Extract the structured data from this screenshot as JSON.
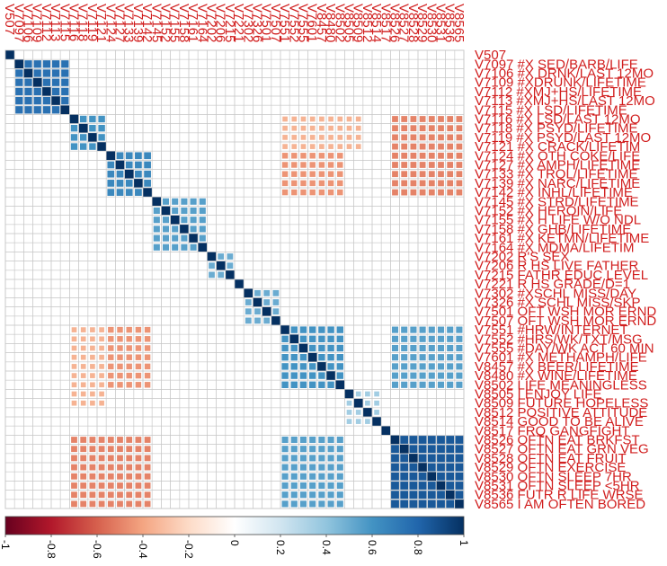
{
  "chart_data": {
    "type": "heatmap",
    "subtype": "correlation-matrix",
    "variables": [
      "V507",
      "V7097 #X SED/BARB/LIFE",
      "V7106 #X DRNK/LAST 12MO",
      "V7109 #XDRUNK/LIFETIME",
      "V7112 #XMJ+HS/LIFETIME",
      "V7113 #XMJ+HS/LAST 12MO",
      "V7115 #X LSD/LIFETIME",
      "V7116 #X LSD/LAST 12MO",
      "V7118 #X PSYD/LIFETIME",
      "V7119 #X PSYD/LAST 12MO",
      "V7121 #X CRACK/LIFETIM",
      "V7124 #X OTH COKE/LIFE",
      "V7127 #X AMPH/LIFETIME",
      "V7133 #X TRQL/LIFETIME",
      "V7139 #X NARC/LIFETIME",
      "V7142 #X INHL/LIFETIME",
      "V7145 #X STRD/LIFETIME",
      "V7152 #X HEROIN/LIFE",
      "V7155 #X H LIFE W/O NDL",
      "V7158 #X GHB/LIFETIME",
      "V7161 #X KETMN/LIFETIME",
      "V7164 #X MDMA/LIFETIM",
      "V7202 R'S SEX",
      "V7206 R HS LIVE FATHER",
      "V7215 FATHR EDUC LEVEL",
      "V7221 R HS GRADE/D=1",
      "V7302 #XSCHL MISS/DAY",
      "V7326 #X SCHL MISS/SKP",
      "V7501 OFT WSH MOR ERND",
      "V7507 OFT WSH MOR ERND",
      "V7551 #HRW/INTERNET",
      "V7552 #HRS/WK/TXT/MSG",
      "V7555 #DAY/WK ACT 60 MIN",
      "V7601 #X METHAMPH/LIFE",
      "V8457 #X BEER/LIFETIME",
      "V8480 #X WINE/LIFETIME",
      "V8502 LIFE MEANINGLESS",
      "V8505 I ENJOY LIFE",
      "V8509 FUTURE HOPELESS",
      "V8512 POSITIVE ATTITUDE",
      "V8514 GOOD TO BE ALIVE",
      "V8517 FRQ GANGFIGHT",
      "V8526 OFTN EAT BRKFST",
      "V8527 OFTN EAT GRN VEG",
      "V8528 OFTN EAT FRUIT",
      "V8529 OFTN EXERCISE",
      "V8530 OFTN SLEEP 7HR",
      "V8531 OFTN SLEEP <5HR",
      "V8536 FUTR R LIFE WRSE",
      "V8565 I AM OFTEN BORED"
    ],
    "top_labels": [
      "V8565",
      "V8536",
      "V8531",
      "V8530",
      "V8529",
      "V8528",
      "V8527",
      "V8526",
      "V8517",
      "V8514",
      "V8512",
      "V8509",
      "V8505",
      "V8502",
      "V8480",
      "V8457",
      "V7601",
      "V7555",
      "V7552",
      "V7551",
      "V7507",
      "V7501",
      "V7326",
      "V7302",
      "V7221",
      "V7215",
      "V7206",
      "V7202",
      "V7164",
      "V7161",
      "V7158",
      "V7155",
      "V7152",
      "V7145",
      "V7142",
      "V7139",
      "V7133",
      "V7127",
      "V7124",
      "V7121",
      "V7119",
      "V7118",
      "V7116",
      "V7115",
      "V7113",
      "V7112",
      "V7109",
      "V7106",
      "V7097",
      "V507"
    ],
    "blocks": [
      {
        "rows": [
          1,
          2,
          3,
          4,
          5,
          6
        ],
        "cols": [
          1,
          2,
          3,
          4,
          5,
          6
        ],
        "value": 0.75
      },
      {
        "rows": [
          7,
          8,
          9,
          10
        ],
        "cols": [
          7,
          8,
          9,
          10
        ],
        "value": 0.6
      },
      {
        "rows": [
          11,
          12,
          13,
          14,
          15
        ],
        "cols": [
          11,
          12,
          13,
          14,
          15
        ],
        "value": 0.65
      },
      {
        "rows": [
          16,
          17,
          18,
          19,
          20,
          21
        ],
        "cols": [
          16,
          17,
          18,
          19,
          20,
          21
        ],
        "value": 0.55
      },
      {
        "rows": [
          22,
          23,
          24
        ],
        "cols": [
          22,
          23,
          24
        ],
        "value": 0.5
      },
      {
        "rows": [
          26,
          27,
          28,
          29
        ],
        "cols": [
          26,
          27,
          28,
          29
        ],
        "value": 0.5
      },
      {
        "rows": [
          30,
          31,
          32,
          33,
          34,
          35,
          36
        ],
        "cols": [
          30,
          31,
          32,
          33,
          34,
          35,
          36
        ],
        "value": 0.6
      },
      {
        "rows": [
          37,
          38,
          39,
          40
        ],
        "cols": [
          37,
          38,
          39,
          40
        ],
        "value": 0.35
      },
      {
        "rows": [
          42,
          43,
          44,
          45,
          46,
          47,
          48,
          49
        ],
        "cols": [
          42,
          43,
          44,
          45,
          46,
          47,
          48,
          49
        ],
        "value": 0.85
      },
      {
        "rows": [
          42,
          43,
          44,
          45,
          46,
          47,
          48,
          49
        ],
        "cols": [
          30,
          31,
          32,
          33,
          34,
          35,
          36
        ],
        "value": 0.55
      },
      {
        "rows": [
          7,
          8,
          9,
          10,
          11,
          12,
          13,
          14,
          15
        ],
        "cols": [
          42,
          43,
          44,
          45,
          46,
          47,
          48,
          49
        ],
        "value": -0.5
      },
      {
        "rows": [
          7,
          8,
          9,
          10,
          11,
          12,
          13,
          14,
          15
        ],
        "cols": [
          30,
          31,
          32,
          33,
          34,
          35,
          36
        ],
        "value": -0.45
      },
      {
        "rows": [
          30,
          31,
          32,
          33,
          34,
          35,
          36,
          37,
          38
        ],
        "cols": [
          7,
          8,
          9,
          10
        ],
        "value": -0.35
      }
    ],
    "color_range": [
      -1,
      1
    ],
    "colorbar_ticks": [
      "-1",
      "-0.8",
      "-0.6",
      "-0.4",
      "-0.2",
      "0",
      "0.2",
      "0.4",
      "0.6",
      "0.8",
      "1"
    ],
    "colorscale": [
      "#67001f",
      "#b2182b",
      "#d6604d",
      "#f4a582",
      "#fddbc7",
      "#ffffff",
      "#d1e5f0",
      "#92c5de",
      "#4393c3",
      "#2166ac",
      "#053061"
    ],
    "diagonal_color": "#053061",
    "label_color": "#d11f1f",
    "grid_color": "#c8c8c8"
  }
}
